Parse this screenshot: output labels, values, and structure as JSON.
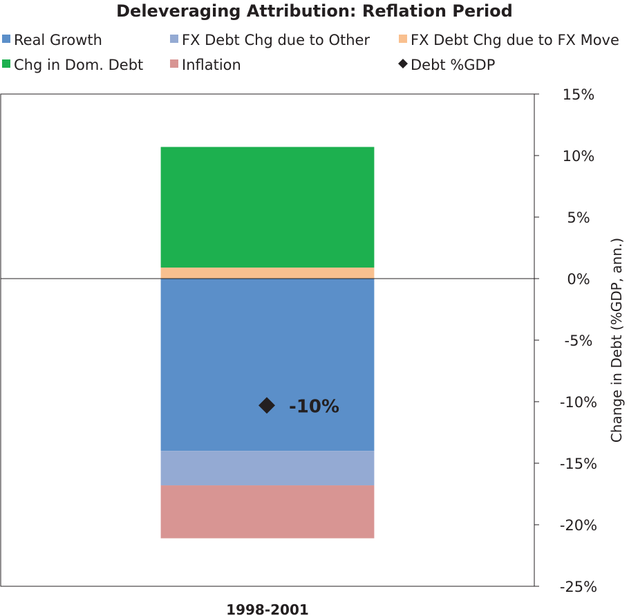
{
  "chart_data": {
    "type": "bar",
    "stacked": true,
    "title": "Deleveraging Attribution: Reflation Period",
    "categories": [
      "1998-2001"
    ],
    "ylabel": "Change in Debt (%GDP, ann.)",
    "ylim": [
      -25,
      15
    ],
    "yticks": [
      15,
      10,
      5,
      0,
      -5,
      -10,
      -15,
      -20,
      -25
    ],
    "ytick_labels": [
      "15%",
      "10%",
      "5%",
      "0%",
      "-5%",
      "-10%",
      "-15%",
      "-20%",
      "-25%"
    ],
    "y_axis_side": "right",
    "legend_position": "top",
    "series": [
      {
        "name": "Real Growth",
        "color": "#5b8fc9",
        "values": [
          -14.0
        ]
      },
      {
        "name": "FX Debt Chg due to Other",
        "color": "#94aad3",
        "values": [
          -2.8
        ]
      },
      {
        "name": "FX Debt Chg due to FX Move",
        "color": "#f9c08f",
        "values": [
          0.9
        ]
      },
      {
        "name": "Chg in Dom. Debt",
        "color": "#1db04f",
        "values": [
          9.8
        ]
      },
      {
        "name": "Inflation",
        "color": "#d89593",
        "values": [
          -4.3
        ]
      }
    ],
    "markers": [
      {
        "name": "Debt %GDP",
        "color": "#231f20",
        "shape": "diamond",
        "values": [
          -10.3
        ],
        "labels": [
          "-10%"
        ]
      }
    ]
  }
}
